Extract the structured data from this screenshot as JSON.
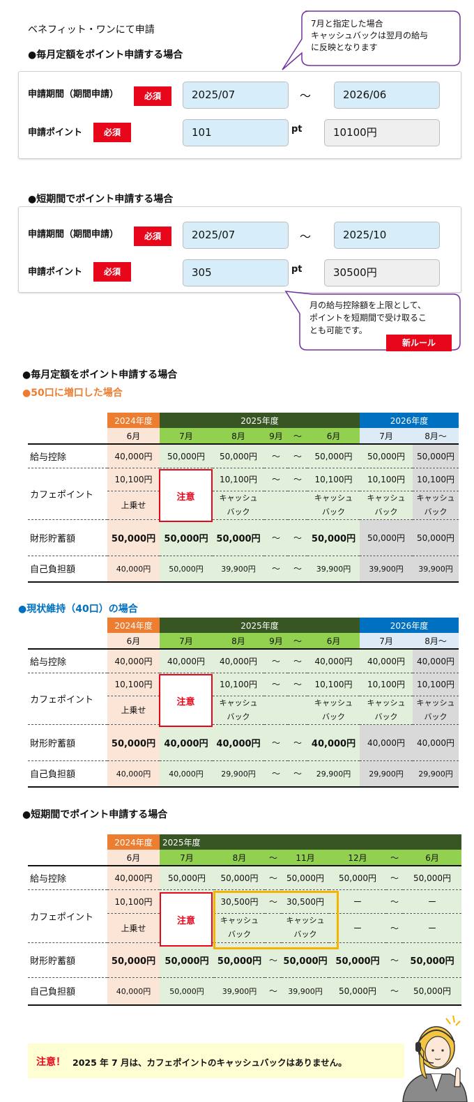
{
  "page_title": "ベネフィット・ワンにて申請",
  "form1": {
    "heading": "●毎月定額をポイント申請する場合",
    "period_label": "申請期間（期間申請）",
    "points_label": "申請ポイント",
    "required": "必須",
    "start": "2025/07",
    "tilde": "～",
    "end": "2026/06",
    "points": "101",
    "unit": "pt",
    "yen": "10100円",
    "bubble": [
      "7月と指定した場合",
      "キャッシュバックは翌月の給与",
      "に反映となります"
    ]
  },
  "form2": {
    "heading": "●短期間でポイント申請する場合",
    "period_label": "申請期間（期間申請）",
    "points_label": "申請ポイント",
    "required": "必須",
    "start": "2025/07",
    "tilde": "～",
    "end": "2025/10",
    "points": "305",
    "unit": "pt",
    "yen": "30500円",
    "bubble": [
      "月の給与控除額を上限として、",
      "ポイントを短期間で受け取るこ",
      "とも可能です。"
    ],
    "new_rule": "新ルール"
  },
  "section_heading": "●毎月定額をポイント申請する場合",
  "t1": {
    "heading": "●50口に増口した場合",
    "years": [
      "2024年度",
      "2025年度",
      "2026年度"
    ],
    "months": [
      "6月",
      "7月",
      "8月",
      "9月",
      "～",
      "6月",
      "7月",
      "8月～"
    ],
    "rows": {
      "salary": {
        "label": "給与控除",
        "v": [
          "40,000円",
          "50,000円",
          "50,000円",
          "～",
          "～",
          "50,000円",
          "50,000円",
          "50,000円"
        ]
      },
      "cafe_label": "カフェポイント",
      "cafe_top": [
        "10,100円",
        "10,100円",
        "～",
        "～",
        "10,100円",
        "10,100円",
        "10,100円"
      ],
      "cafe_bottom": [
        "上乗せ",
        "キャッシュ",
        "バック",
        "キャッシュ",
        "バック",
        "キャッシュ",
        "バック",
        "キャッシュ",
        "バック"
      ],
      "caution": "注意",
      "saving": {
        "label": "財形貯蓄額",
        "v": [
          "50,000円",
          "50,000円",
          "50,000円",
          "～",
          "～",
          "50,000円",
          "50,000円",
          "50,000円"
        ]
      },
      "self": {
        "label": "自己負担額",
        "v": [
          "40,000円",
          "50,000円",
          "39,900円",
          "～",
          "～",
          "39,900円",
          "39,900円",
          "39,900円"
        ]
      }
    }
  },
  "t2": {
    "heading": "●現状維持（40口）の場合",
    "years": [
      "2024年度",
      "2025年度",
      "2026年度"
    ],
    "months": [
      "6月",
      "7月",
      "8月",
      "9月",
      "～",
      "6月",
      "7月",
      "8月～"
    ],
    "rows": {
      "salary": {
        "label": "給与控除",
        "v": [
          "40,000円",
          "40,000円",
          "40,000円",
          "～",
          "～",
          "40,000円",
          "40,000円",
          "40,000円"
        ]
      },
      "cafe_label": "カフェポイント",
      "cafe_top": [
        "10,100円",
        "10,100円",
        "～",
        "～",
        "10,100円",
        "10,100円",
        "10,100円"
      ],
      "cafe_bottom": [
        "上乗せ",
        "キャッシュ",
        "バック",
        "キャッシュ",
        "バック",
        "キャッシュ",
        "バック",
        "キャッシュ",
        "バック"
      ],
      "caution": "注意",
      "saving": {
        "label": "財形貯蓄額",
        "v": [
          "50,000円",
          "40,000円",
          "40,000円",
          "～",
          "～",
          "40,000円",
          "40,000円",
          "40,000円"
        ]
      },
      "self": {
        "label": "自己負担額",
        "v": [
          "40,000円",
          "40,000円",
          "29,900円",
          "～",
          "～",
          "29,900円",
          "29,900円",
          "29,900円"
        ]
      }
    }
  },
  "t3": {
    "heading": "●短期間でポイント申請する場合",
    "years": [
      "2024年度",
      "2025年度"
    ],
    "months": [
      "6月",
      "7月",
      "8月",
      "～",
      "11月",
      "12月",
      "～",
      "6月"
    ],
    "rows": {
      "salary": {
        "label": "給与控除",
        "v": [
          "40,000円",
          "50,000円",
          "50,000円",
          "～",
          "50,000円",
          "50,000円",
          "～",
          "50,000円"
        ]
      },
      "cafe_label": "カフェポイント",
      "cafe_top": [
        "10,100円",
        "30,500円",
        "～",
        "30,500円",
        "ー",
        "～",
        "ー"
      ],
      "cafe_bottom": [
        "上乗せ",
        "キャッシュ",
        "バック",
        "キャッシュ",
        "バック",
        "ー",
        "～",
        "ー"
      ],
      "caution": "注意",
      "saving": {
        "label": "財形貯蓄額",
        "v": [
          "50,000円",
          "50,000円",
          "50,000円",
          "～",
          "50,000円",
          "50,000円",
          "～",
          "50,000円"
        ]
      },
      "self": {
        "label": "自己負担額",
        "v": [
          "40,000円",
          "50,000円",
          "39,900円",
          "～",
          "39,900円",
          "50,000円",
          "～",
          "50,000円"
        ]
      }
    }
  },
  "footer_note": {
    "prefix": "注意！",
    "text": "2025 年 7 月は、カフェポイントのキャッシュバックはありません。"
  },
  "colors": {
    "required": "#e8061a",
    "orange": "#ed7d31",
    "green_dark": "#375623",
    "green": "#92d050",
    "blue": "#0070c0",
    "highlight": "#f4b400"
  }
}
